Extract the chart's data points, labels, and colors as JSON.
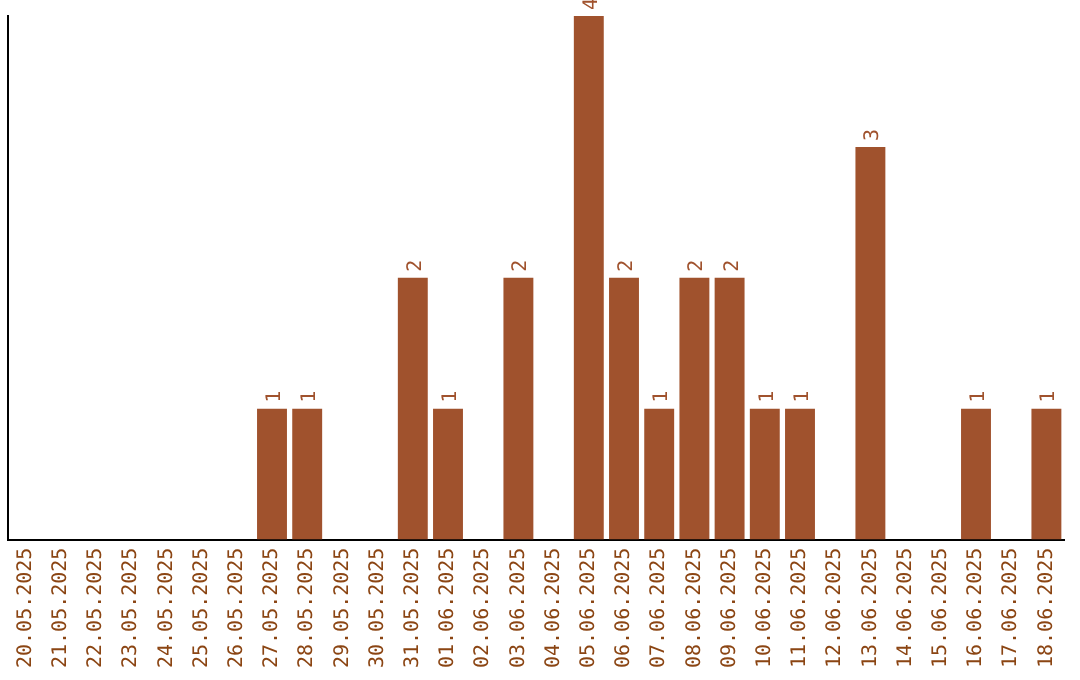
{
  "chart_data": {
    "type": "bar",
    "categories": [
      "20.05.2025",
      "21.05.2025",
      "22.05.2025",
      "23.05.2025",
      "24.05.2025",
      "25.05.2025",
      "26.05.2025",
      "27.05.2025",
      "28.05.2025",
      "29.05.2025",
      "30.05.2025",
      "31.05.2025",
      "01.06.2025",
      "02.06.2025",
      "03.06.2025",
      "04.06.2025",
      "05.06.2025",
      "06.06.2025",
      "07.06.2025",
      "08.06.2025",
      "09.06.2025",
      "10.06.2025",
      "11.06.2025",
      "12.06.2025",
      "13.06.2025",
      "14.06.2025",
      "15.06.2025",
      "16.06.2025",
      "17.06.2025",
      "18.06.2025"
    ],
    "values": [
      0,
      0,
      0,
      0,
      0,
      0,
      0,
      1,
      1,
      0,
      0,
      2,
      1,
      0,
      2,
      0,
      4,
      2,
      1,
      2,
      2,
      1,
      1,
      0,
      3,
      0,
      0,
      1,
      0,
      1
    ],
    "value_labels": [
      null,
      null,
      null,
      null,
      null,
      null,
      null,
      "1",
      "1",
      null,
      null,
      "2",
      "1",
      null,
      "2",
      null,
      "4",
      "2",
      "1",
      "2",
      "2",
      "1",
      "1",
      null,
      "3",
      null,
      null,
      "1",
      null,
      "1"
    ],
    "color": "#a0522d",
    "grid": false,
    "legend": false,
    "tick_labels": "x"
  }
}
